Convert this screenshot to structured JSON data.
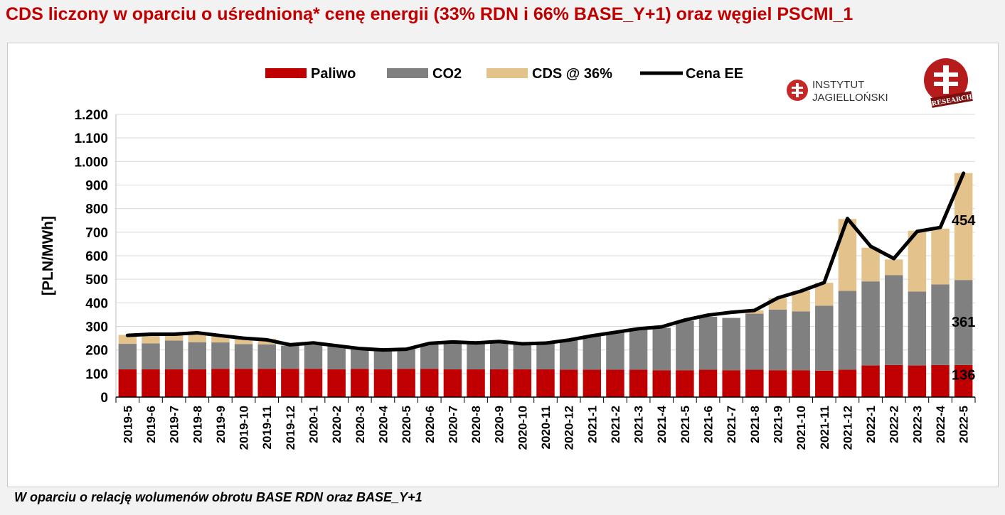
{
  "title": "CDS liczony w oparciu o uśrednioną* cenę energii (33% RDN i 66% BASE_Y+1) oraz węgiel PSCMI_1",
  "footnote": "W oparciu o relację wolumenów obrotu BASE RDN oraz BASE_Y+1",
  "logo": {
    "line1": "INSTYTUT",
    "line2": "JAGIELLOŃSKI",
    "badge": "RESEARCH"
  },
  "colors": {
    "paliwo": "#c00000",
    "co2": "#808080",
    "cds": "#e3c28c",
    "line": "#000000",
    "title": "#c00000"
  },
  "chart_data": {
    "type": "bar",
    "stacked": true,
    "title": "CDS liczony w oparciu o uśrednioną* cenę energii (33% RDN i 66% BASE_Y+1) oraz węgiel PSCMI_1",
    "ylabel": "[PLN/MWh]",
    "xlabel": "",
    "ylim": [
      0,
      1200
    ],
    "yticks": [
      0,
      100,
      200,
      300,
      400,
      500,
      600,
      700,
      800,
      900,
      1000,
      1100,
      1200
    ],
    "ytick_labels": [
      "0",
      "100",
      "200",
      "300",
      "400",
      "500",
      "600",
      "700",
      "800",
      "900",
      "1.000",
      "1.100",
      "1.200"
    ],
    "grid": true,
    "legend_position": "top",
    "categories": [
      "2019-5",
      "2019-6",
      "2019-7",
      "2019-8",
      "2019-9",
      "2019-10",
      "2019-11",
      "2019-12",
      "2020-1",
      "2020-2",
      "2020-3",
      "2020-4",
      "2020-5",
      "2020-6",
      "2020-7",
      "2020-8",
      "2020-9",
      "2020-10",
      "2020-11",
      "2020-12",
      "2021-1",
      "2021-2",
      "2021-3",
      "2021-4",
      "2021-5",
      "2021-6",
      "2021-7",
      "2021-8",
      "2021-9",
      "2021-10",
      "2021-11",
      "2021-12",
      "2022-1",
      "2022-2",
      "2022-3",
      "2022-4",
      "2022-5"
    ],
    "series": [
      {
        "name": "Paliwo",
        "type": "bar",
        "values": [
          118,
          118,
          118,
          118,
          120,
          120,
          120,
          120,
          120,
          118,
          120,
          118,
          120,
          120,
          118,
          118,
          118,
          118,
          118,
          116,
          116,
          116,
          116,
          114,
          114,
          116,
          114,
          116,
          114,
          114,
          112,
          116,
          134,
          136,
          134,
          136,
          136
        ]
      },
      {
        "name": "CO2",
        "type": "bar",
        "values": [
          108,
          110,
          122,
          115,
          112,
          105,
          104,
          98,
          100,
          98,
          85,
          82,
          84,
          107,
          111,
          110,
          117,
          107,
          111,
          129,
          145,
          160,
          172,
          180,
          210,
          225,
          222,
          238,
          257,
          250,
          276,
          335,
          357,
          382,
          314,
          342,
          361
        ]
      },
      {
        "name": "CDS @ 36%",
        "type": "bar",
        "values": [
          38,
          40,
          27,
          42,
          28,
          25,
          24,
          0,
          10,
          0,
          0,
          0,
          0,
          0,
          0,
          0,
          0,
          0,
          0,
          0,
          0,
          0,
          0,
          0,
          0,
          0,
          0,
          14,
          49,
          87,
          97,
          305,
          143,
          66,
          258,
          237,
          454
        ]
      },
      {
        "name": "Cena EE",
        "type": "line",
        "values": [
          262,
          267,
          267,
          273,
          261,
          250,
          243,
          222,
          230,
          218,
          206,
          200,
          203,
          228,
          234,
          230,
          236,
          226,
          229,
          242,
          260,
          275,
          290,
          298,
          327,
          348,
          360,
          368,
          421,
          450,
          486,
          758,
          640,
          588,
          703,
          720,
          950
        ]
      }
    ],
    "annotations": [
      {
        "text": "454",
        "series": "CDS @ 36%",
        "category": "2022-5"
      },
      {
        "text": "361",
        "series": "CO2",
        "category": "2022-5"
      },
      {
        "text": "136",
        "series": "Paliwo",
        "category": "2022-5"
      }
    ]
  }
}
